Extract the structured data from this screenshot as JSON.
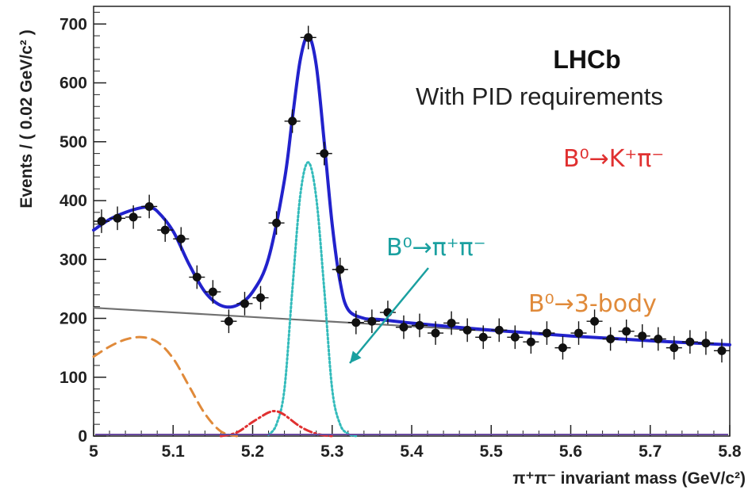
{
  "chart_data": {
    "type": "line",
    "xlabel": "π⁺π⁻ invariant mass (GeV/c²)",
    "ylabel": "Events / ( 0.02 GeV/c² )",
    "xlim": [
      5.0,
      5.8
    ],
    "ylim": [
      0,
      730
    ],
    "x_ticks": [
      "5",
      "5.1",
      "5.2",
      "5.3",
      "5.4",
      "5.5",
      "5.6",
      "5.7",
      "5.8"
    ],
    "y_ticks": [
      "0",
      "100",
      "200",
      "300",
      "400",
      "500",
      "600",
      "700"
    ],
    "grid": false,
    "annotations": {
      "experiment": "LHCb",
      "subtitle": "With PID requirements",
      "kpi_label": "B⁰→K⁺π⁻",
      "pipi_label": "B⁰→π⁺π⁻",
      "threebody_label": "B⁰→3-body"
    },
    "colors": {
      "data": "#111111",
      "total_fit": "#2222cc",
      "combinatorial": "#707070",
      "pipi_signal": "#33bbbb",
      "kpi": "#e03030",
      "threebody": "#e08a3a",
      "arrow": "#1aa0a0"
    },
    "data_points": {
      "x": [
        5.01,
        5.03,
        5.05,
        5.07,
        5.09,
        5.11,
        5.13,
        5.15,
        5.17,
        5.19,
        5.21,
        5.23,
        5.25,
        5.27,
        5.29,
        5.31,
        5.33,
        5.35,
        5.37,
        5.39,
        5.41,
        5.43,
        5.45,
        5.47,
        5.49,
        5.51,
        5.53,
        5.55,
        5.57,
        5.59,
        5.61,
        5.63,
        5.65,
        5.67,
        5.69,
        5.71,
        5.73,
        5.75,
        5.77,
        5.79
      ],
      "y": [
        365,
        370,
        372,
        390,
        350,
        335,
        270,
        245,
        195,
        225,
        235,
        362,
        535,
        677,
        480,
        283,
        193,
        195,
        210,
        185,
        188,
        175,
        192,
        180,
        168,
        180,
        168,
        160,
        175,
        150,
        175,
        195,
        165,
        178,
        170,
        165,
        150,
        160,
        158,
        145
      ],
      "y_err": 20
    },
    "series": [
      {
        "name": "",
        "style": "solid",
        "x": [
          5.0,
          5.02,
          5.04,
          5.06,
          5.07,
          5.08,
          5.1,
          5.12,
          5.14,
          5.16,
          5.18,
          5.2,
          5.22,
          5.24,
          5.25,
          5.26,
          5.27,
          5.28,
          5.29,
          5.3,
          5.31,
          5.32,
          5.34,
          5.36,
          5.4,
          5.5,
          5.6,
          5.7,
          5.8
        ],
        "y": [
          350,
          368,
          380,
          388,
          388,
          382,
          348,
          292,
          245,
          222,
          222,
          245,
          302,
          435,
          540,
          640,
          680,
          630,
          500,
          360,
          262,
          215,
          200,
          198,
          192,
          180,
          170,
          162,
          155
        ]
      },
      {
        "name": "",
        "style": "solid",
        "x": [
          5.0,
          5.8
        ],
        "y": [
          218,
          155
        ]
      },
      {
        "name": "",
        "style": "dotted",
        "x": [
          5.22,
          5.23,
          5.24,
          5.25,
          5.26,
          5.27,
          5.28,
          5.29,
          5.3,
          5.31,
          5.32,
          5.33
        ],
        "y": [
          2,
          20,
          80,
          250,
          410,
          465,
          405,
          250,
          80,
          20,
          4,
          0
        ]
      },
      {
        "name": "",
        "style": "dashdot",
        "x": [
          5.16,
          5.18,
          5.2,
          5.22,
          5.23,
          5.24,
          5.26,
          5.28,
          5.3
        ],
        "y": [
          0,
          6,
          24,
          40,
          42,
          36,
          16,
          4,
          0
        ]
      },
      {
        "name": "",
        "style": "dashed",
        "x": [
          5.0,
          5.02,
          5.04,
          5.06,
          5.08,
          5.1,
          5.12,
          5.14,
          5.16,
          5.18
        ],
        "y": [
          135,
          152,
          164,
          168,
          160,
          132,
          85,
          38,
          8,
          0
        ]
      }
    ]
  }
}
